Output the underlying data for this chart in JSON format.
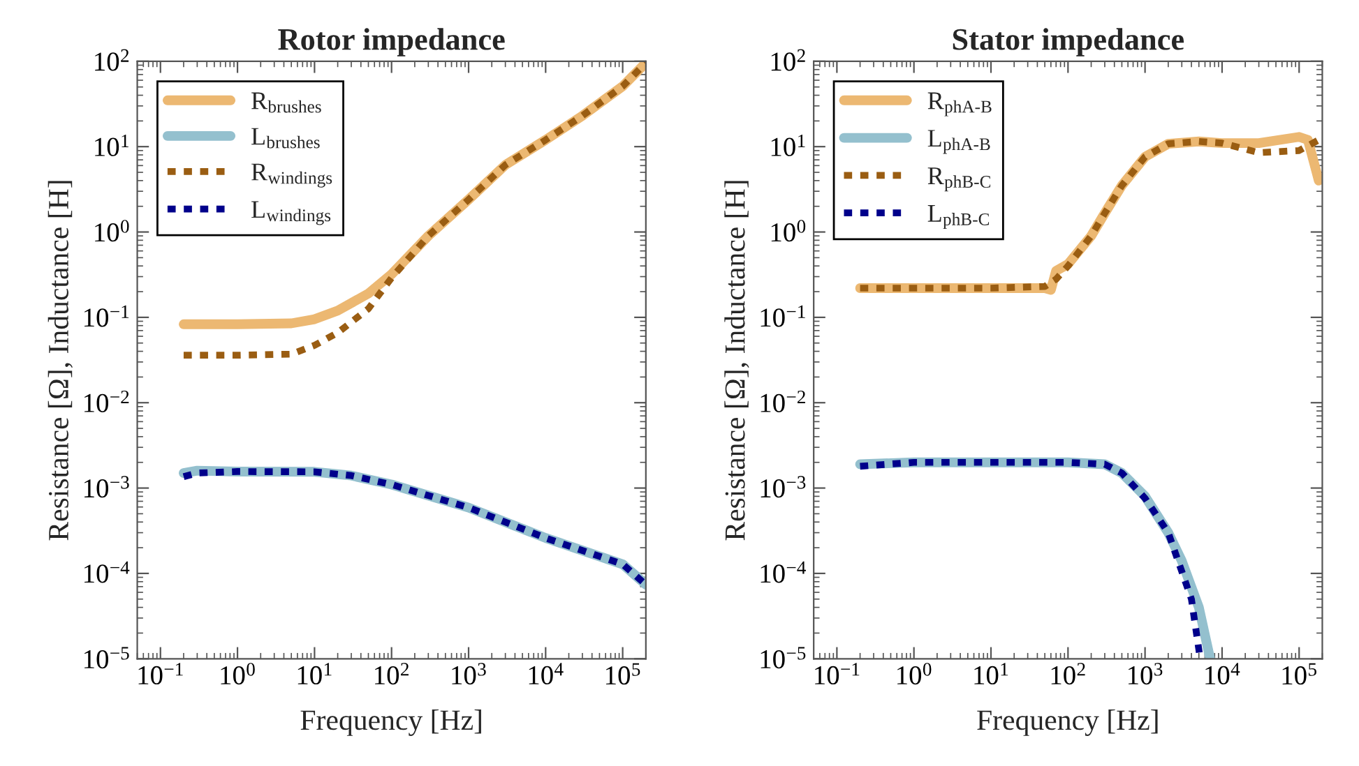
{
  "chart_data": [
    {
      "type": "line",
      "title": "Rotor impedance",
      "xlabel": "Frequency [Hz]",
      "ylabel": "Resistance [Ω], Inductance [H]",
      "log": "xy",
      "grid": false,
      "legend": "top left",
      "xlim": [
        0.05,
        200000
      ],
      "ylim": [
        1e-05,
        100
      ],
      "xticks": [
        {
          "value": 0.1,
          "label": "10$^{−1}$"
        },
        {
          "value": 1,
          "label": "10$^{0}$"
        },
        {
          "value": 10,
          "label": "10$^{1}$"
        },
        {
          "value": 100,
          "label": "10$^{2}$"
        },
        {
          "value": 1000,
          "label": "10$^{3}$"
        },
        {
          "value": 10000,
          "label": "10$^{4}$"
        },
        {
          "value": 100000,
          "label": "10$^{5}$"
        }
      ],
      "yticks": [
        {
          "value": 1e-05,
          "label": "10$^{−5}$"
        },
        {
          "value": 0.0001,
          "label": "10$^{−4}$"
        },
        {
          "value": 0.001,
          "label": "10$^{−3}$"
        },
        {
          "value": 0.01,
          "label": "10$^{−2}$"
        },
        {
          "value": 0.1,
          "label": "10$^{−1}$"
        },
        {
          "value": 1,
          "label": "10$^{0}$"
        },
        {
          "value": 10,
          "label": "10$^{1}$"
        },
        {
          "value": 100,
          "label": "10$^{2}$"
        }
      ],
      "series": [
        {
          "name": "R$_{brushes}$",
          "color": "#ecb872",
          "line_style": "solid",
          "x": [
            0.2,
            1,
            5,
            10,
            20,
            50,
            100,
            300,
            1000,
            3000,
            10000,
            30000,
            100000,
            200000
          ],
          "values": [
            0.083,
            0.083,
            0.085,
            0.095,
            0.12,
            0.19,
            0.32,
            0.9,
            2.4,
            6.1,
            12,
            23,
            51,
            96
          ]
        },
        {
          "name": "L$_{brushes}$",
          "color": "#94c0ce",
          "line_style": "solid",
          "x": [
            0.2,
            0.3,
            1,
            10,
            30,
            100,
            1000,
            10000,
            100000,
            200000
          ],
          "values": [
            0.0015,
            0.0016,
            0.00156,
            0.00155,
            0.0014,
            0.0011,
            0.00059,
            0.00026,
            0.000128,
            7.4e-05
          ]
        },
        {
          "name": "R$_{windings}$",
          "color": "#9a5d12",
          "line_style": "dashed",
          "x": [
            0.2,
            1,
            5,
            10,
            20,
            50,
            100,
            300,
            1000,
            3000,
            10000,
            30000,
            100000,
            200000
          ],
          "values": [
            0.036,
            0.036,
            0.037,
            0.047,
            0.066,
            0.126,
            0.29,
            0.9,
            2.4,
            6.1,
            12,
            23,
            51,
            96
          ]
        },
        {
          "name": "L$_{windings}$",
          "color": "#00008b",
          "line_style": "dashed",
          "x": [
            0.2,
            0.3,
            1,
            10,
            30,
            100,
            1000,
            10000,
            100000,
            200000
          ],
          "values": [
            0.00136,
            0.0015,
            0.00156,
            0.00155,
            0.0014,
            0.0011,
            0.00059,
            0.00026,
            0.000128,
            7.4e-05
          ]
        }
      ]
    },
    {
      "type": "line",
      "title": "Stator impedance",
      "xlabel": "Frequency [Hz]",
      "ylabel": "Resistance [Ω], Inductance [H]",
      "log": "xy",
      "grid": false,
      "legend": "top left",
      "xlim": [
        0.05,
        200000
      ],
      "ylim": [
        1e-05,
        100
      ],
      "xticks": [
        {
          "value": 0.1,
          "label": "10$^{−1}$"
        },
        {
          "value": 1,
          "label": "10$^{0}$"
        },
        {
          "value": 10,
          "label": "10$^{1}$"
        },
        {
          "value": 100,
          "label": "10$^{2}$"
        },
        {
          "value": 1000,
          "label": "10$^{3}$"
        },
        {
          "value": 10000,
          "label": "10$^{4}$"
        },
        {
          "value": 100000,
          "label": "10$^{5}$"
        }
      ],
      "yticks": [
        {
          "value": 1e-05,
          "label": "10$^{−5}$"
        },
        {
          "value": 0.0001,
          "label": "10$^{−4}$"
        },
        {
          "value": 0.001,
          "label": "10$^{−3}$"
        },
        {
          "value": 0.01,
          "label": "10$^{−2}$"
        },
        {
          "value": 0.1,
          "label": "10$^{−1}$"
        },
        {
          "value": 1,
          "label": "10$^{0}$"
        },
        {
          "value": 10,
          "label": "10$^{1}$"
        },
        {
          "value": 100,
          "label": "10$^{2}$"
        }
      ],
      "series": [
        {
          "name": "R$_{phA-B}$",
          "color": "#ecb872",
          "line_style": "solid",
          "x": [
            0.2,
            1,
            10,
            50,
            60,
            70,
            100,
            200,
            300,
            500,
            1000,
            2000,
            5000,
            10000,
            30000,
            100000,
            130000,
            180000
          ],
          "values": [
            0.22,
            0.22,
            0.22,
            0.22,
            0.21,
            0.35,
            0.42,
            0.9,
            1.66,
            3.5,
            7.6,
            10.8,
            11.5,
            11,
            11,
            13,
            12,
            4
          ]
        },
        {
          "name": "L$_{phA-B}$",
          "color": "#94c0ce",
          "line_style": "solid",
          "x": [
            0.2,
            1,
            10,
            100,
            300,
            500,
            1000,
            2000,
            3000,
            5000,
            7000
          ],
          "values": [
            0.0019,
            0.002,
            0.002,
            0.002,
            0.0019,
            0.0015,
            0.0008,
            0.0003,
            0.00014,
            4e-05,
            1e-05
          ]
        },
        {
          "name": "R$_{phB-C}$",
          "color": "#9a5d12",
          "line_style": "dashed",
          "x": [
            0.2,
            1,
            10,
            50,
            70,
            100,
            200,
            300,
            500,
            1000,
            2000,
            5000,
            10000,
            30000,
            100000,
            180000
          ],
          "values": [
            0.22,
            0.22,
            0.22,
            0.23,
            0.28,
            0.4,
            0.9,
            1.66,
            3.5,
            7.6,
            10.8,
            11.5,
            11,
            8.5,
            9,
            12
          ]
        },
        {
          "name": "L$_{phB-C}$",
          "color": "#00008b",
          "line_style": "dashed",
          "x": [
            0.2,
            1,
            10,
            100,
            300,
            500,
            1000,
            2000,
            4000,
            5200
          ],
          "values": [
            0.0018,
            0.002,
            0.002,
            0.002,
            0.0019,
            0.0015,
            0.00076,
            0.0003,
            5e-05,
            1e-05
          ]
        }
      ]
    }
  ]
}
